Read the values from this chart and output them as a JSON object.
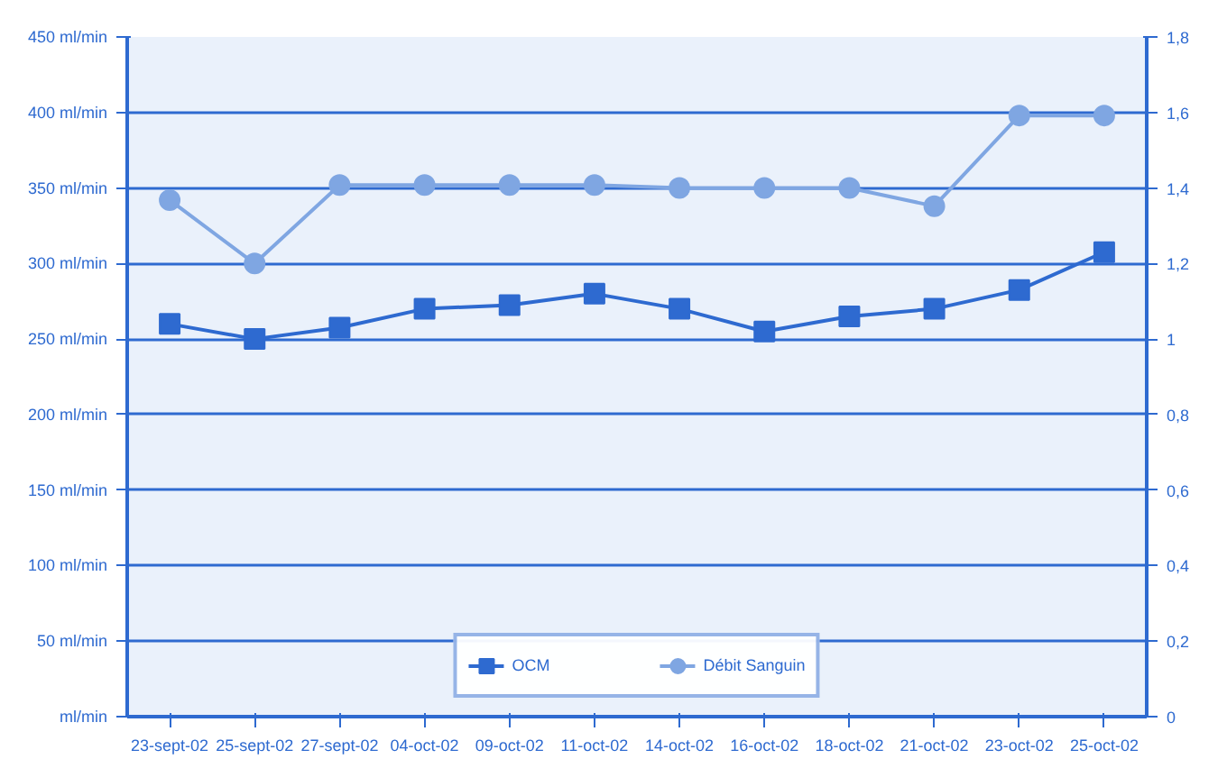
{
  "chart_data": {
    "type": "line",
    "categories": [
      "23-sept-02",
      "25-sept-02",
      "27-sept-02",
      "04-oct-02",
      "09-oct-02",
      "11-oct-02",
      "14-oct-02",
      "16-oct-02",
      "18-oct-02",
      "21-oct-02",
      "23-oct-02",
      "25-oct-02"
    ],
    "series": [
      {
        "name": "OCM",
        "color": "#2e6ad0",
        "marker": "square",
        "axis": "y2",
        "values": [
          1.04,
          1.0,
          1.03,
          1.08,
          1.09,
          1.12,
          1.08,
          1.02,
          1.06,
          1.08,
          1.13,
          1.23
        ]
      },
      {
        "name": "Débit Sanguin",
        "color": "#7fa6e2",
        "marker": "circle",
        "values": [
          342,
          300,
          352,
          352,
          352,
          352,
          350,
          350,
          350,
          338,
          398,
          398
        ]
      }
    ],
    "ylim": [
      0,
      450
    ],
    "yticks": [
      {
        "value": 0,
        "label": "ml/min"
      },
      {
        "value": 50,
        "label": "50 ml/min"
      },
      {
        "value": 100,
        "label": "100 ml/min"
      },
      {
        "value": 150,
        "label": "150 ml/min"
      },
      {
        "value": 200,
        "label": "200 ml/min"
      },
      {
        "value": 250,
        "label": "250 ml/min"
      },
      {
        "value": 300,
        "label": "300 ml/min"
      },
      {
        "value": 350,
        "label": "350 ml/min"
      },
      {
        "value": 400,
        "label": "400 ml/min"
      },
      {
        "value": 450,
        "label": "450 ml/min"
      }
    ],
    "y2lim": [
      0,
      1.8
    ],
    "y2ticks": [
      0,
      {
        "value": 0.2,
        "label": "0,2"
      },
      {
        "value": 0.4,
        "label": "0,4"
      },
      {
        "value": 0.6,
        "label": "0,6"
      },
      {
        "value": 0.8,
        "label": "0,8"
      },
      1,
      {
        "value": 1.2,
        "label": "1,2"
      },
      {
        "value": 1.4,
        "label": "1,4"
      },
      {
        "value": 1.6,
        "label": "1,6"
      },
      {
        "value": 1.8,
        "label": "1,8"
      }
    ],
    "grid": "y",
    "legend": "bottom",
    "line_style": "solid"
  }
}
